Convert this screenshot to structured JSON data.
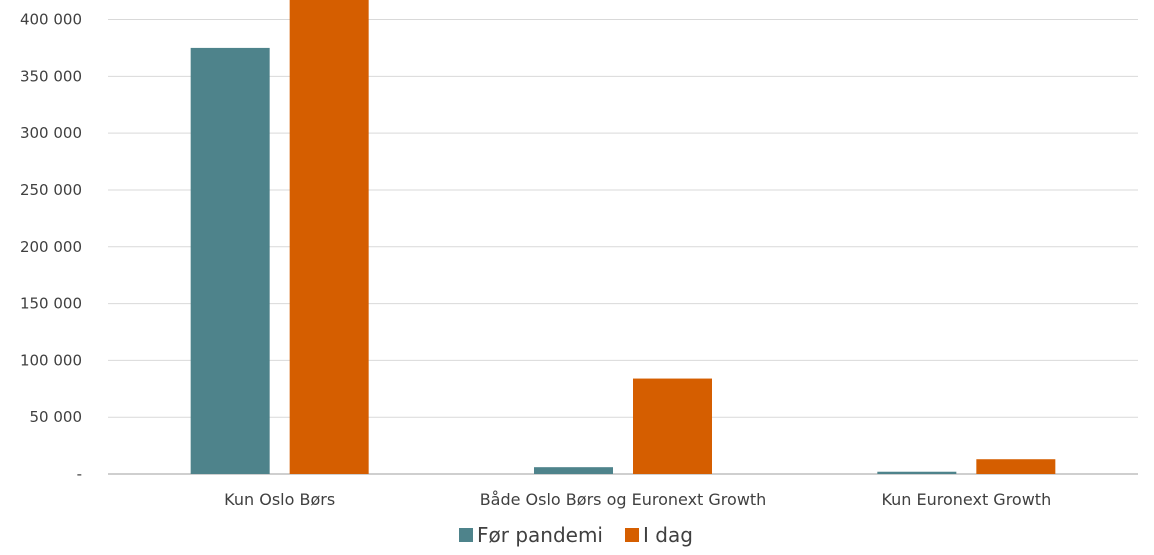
{
  "chart_data": {
    "type": "bar",
    "categories": [
      "Kun Oslo Børs",
      "Både Oslo Børs og Euronext Growth",
      "Kun Euronext Growth"
    ],
    "series": [
      {
        "name": "Før pandemi",
        "values": [
          375000,
          6000,
          2000
        ],
        "color": "#4e838b"
      },
      {
        "name": "I dag",
        "values": [
          420000,
          84000,
          13000
        ],
        "color": "#d55e00"
      }
    ],
    "ylim": [
      0,
      400000
    ],
    "yticks": [
      {
        "value": 0,
        "label": "-"
      },
      {
        "value": 50000,
        "label": "50 000"
      },
      {
        "value": 100000,
        "label": "100 000"
      },
      {
        "value": 150000,
        "label": "150 000"
      },
      {
        "value": 200000,
        "label": "200 000"
      },
      {
        "value": 250000,
        "label": "250 000"
      },
      {
        "value": 300000,
        "label": "300 000"
      },
      {
        "value": 350000,
        "label": "350 000"
      },
      {
        "value": 400000,
        "label": "400 000"
      }
    ],
    "grid": true,
    "legend_position": "bottom",
    "title": "",
    "xlabel": "",
    "ylabel": ""
  }
}
